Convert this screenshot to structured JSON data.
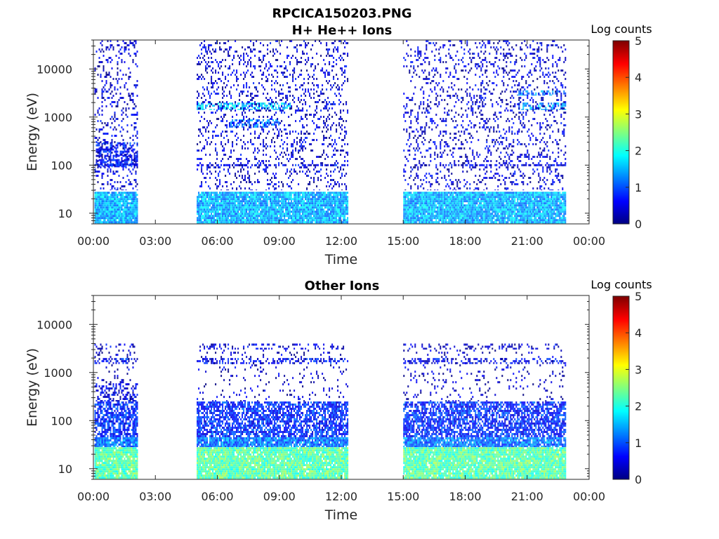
{
  "figure": {
    "title_line1": "RPCICA150203.PNG"
  },
  "chart_data": [
    {
      "type": "heatmap",
      "title": "H+ He++ Ions",
      "xlabel": "Time",
      "ylabel": "Energy (eV)",
      "x_ticks": [
        "00:00",
        "03:00",
        "06:00",
        "09:00",
        "12:00",
        "15:00",
        "18:00",
        "21:00",
        "00:00"
      ],
      "xlim_hours": [
        0,
        24
      ],
      "y_scale": "log",
      "ylim": [
        6,
        40000
      ],
      "y_ticks": [
        {
          "value": 10,
          "label": "10"
        },
        {
          "value": 100,
          "label": "100"
        },
        {
          "value": 1000,
          "label": "1000"
        },
        {
          "value": 10000,
          "label": "10000"
        }
      ],
      "colorbar": {
        "title": "Log counts",
        "range": [
          0,
          5
        ],
        "ticks": [
          "0",
          "1",
          "2",
          "3",
          "4",
          "5"
        ],
        "colormap": "jet"
      },
      "data_intervals_hours": [
        [
          0.05,
          2.1
        ],
        [
          5.0,
          12.3
        ],
        [
          15.0,
          22.85
        ]
      ],
      "bands": [
        {
          "e_min": 6,
          "e_max": 28,
          "level": 1.5,
          "coverage": 0.95
        },
        {
          "e_min": 90,
          "e_max": 300,
          "level": 0.7,
          "coverage": 0.6,
          "hours": [
            0.05,
            2.1
          ]
        },
        {
          "e_min": 1400,
          "e_max": 2000,
          "level": 1.6,
          "coverage": 0.6,
          "hours": [
            5.0,
            9.5
          ]
        },
        {
          "e_min": 600,
          "e_max": 900,
          "level": 1.2,
          "coverage": 0.5,
          "hours": [
            6.5,
            9.0
          ]
        },
        {
          "e_min": 1400,
          "e_max": 2000,
          "level": 1.4,
          "coverage": 0.5,
          "hours": [
            20.5,
            22.85
          ]
        },
        {
          "e_min": 2800,
          "e_max": 3600,
          "level": 1.2,
          "coverage": 0.5,
          "hours": [
            20.5,
            22.85
          ]
        },
        {
          "e_min": 95,
          "e_max": 105,
          "level": 0.6,
          "coverage": 0.5
        },
        {
          "e_min": 30,
          "e_max": 40000,
          "level": 0.4,
          "coverage": 0.18
        }
      ]
    },
    {
      "type": "heatmap",
      "title": "Other Ions",
      "xlabel": "Time",
      "ylabel": "Energy (eV)",
      "x_ticks": [
        "00:00",
        "03:00",
        "06:00",
        "09:00",
        "12:00",
        "15:00",
        "18:00",
        "21:00",
        "00:00"
      ],
      "xlim_hours": [
        0,
        24
      ],
      "y_scale": "log",
      "ylim": [
        6,
        40000
      ],
      "y_ticks": [
        {
          "value": 10,
          "label": "10"
        },
        {
          "value": 100,
          "label": "100"
        },
        {
          "value": 1000,
          "label": "1000"
        },
        {
          "value": 10000,
          "label": "10000"
        }
      ],
      "colorbar": {
        "title": "Log counts",
        "range": [
          0,
          5
        ],
        "ticks": [
          "0",
          "1",
          "2",
          "3",
          "4",
          "5"
        ],
        "colormap": "jet"
      },
      "data_intervals_hours": [
        [
          0.05,
          2.1
        ],
        [
          5.0,
          12.3
        ],
        [
          15.0,
          22.85
        ]
      ],
      "bands": [
        {
          "e_min": 6,
          "e_max": 28,
          "level": 2.3,
          "coverage": 0.95
        },
        {
          "e_min": 28,
          "e_max": 45,
          "level": 1.2,
          "coverage": 0.9
        },
        {
          "e_min": 45,
          "e_max": 250,
          "level": 0.8,
          "coverage": 0.7
        },
        {
          "e_min": 250,
          "e_max": 600,
          "level": 0.5,
          "coverage": 0.4,
          "hours": [
            0.05,
            2.1
          ]
        },
        {
          "e_min": 1500,
          "e_max": 2000,
          "level": 0.6,
          "coverage": 0.4
        },
        {
          "e_min": 3000,
          "e_max": 4000,
          "level": 0.4,
          "coverage": 0.25
        },
        {
          "e_min": 250,
          "e_max": 3000,
          "level": 0.3,
          "coverage": 0.08
        }
      ]
    }
  ]
}
